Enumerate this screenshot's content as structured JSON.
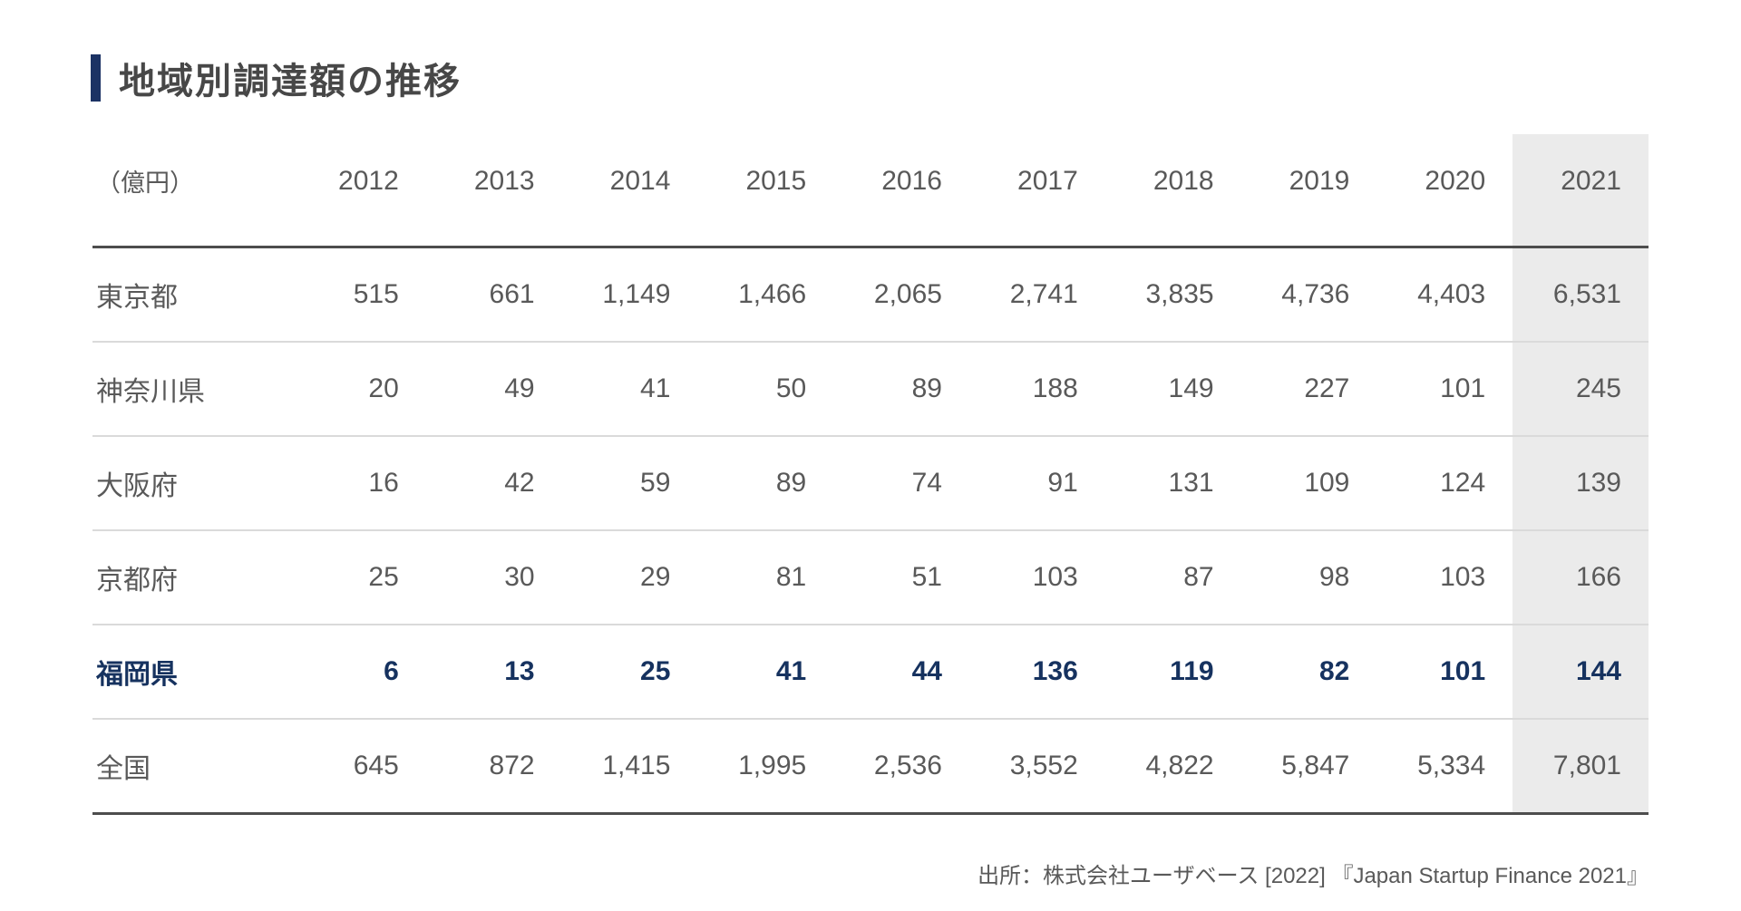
{
  "page": {
    "title": "地域別調達額の推移"
  },
  "table": {
    "unit_label": "（億円）",
    "year_headers": [
      "2012",
      "2013",
      "2014",
      "2015",
      "2016",
      "2017",
      "2018",
      "2019",
      "2020",
      "2021"
    ],
    "highlighted_year": "2021",
    "rows": [
      {
        "label": "東京都",
        "emphasis": false,
        "values": [
          "515",
          "661",
          "1,149",
          "1,466",
          "2,065",
          "2,741",
          "3,835",
          "4,736",
          "4,403",
          "6,531"
        ]
      },
      {
        "label": "神奈川県",
        "emphasis": false,
        "values": [
          "20",
          "49",
          "41",
          "50",
          "89",
          "188",
          "149",
          "227",
          "101",
          "245"
        ]
      },
      {
        "label": "大阪府",
        "emphasis": false,
        "values": [
          "16",
          "42",
          "59",
          "89",
          "74",
          "91",
          "131",
          "109",
          "124",
          "139"
        ]
      },
      {
        "label": "京都府",
        "emphasis": false,
        "values": [
          "25",
          "30",
          "29",
          "81",
          "51",
          "103",
          "87",
          "98",
          "103",
          "166"
        ]
      },
      {
        "label": "福岡県",
        "emphasis": true,
        "values": [
          "6",
          "13",
          "25",
          "41",
          "44",
          "136",
          "119",
          "82",
          "101",
          "144"
        ]
      },
      {
        "label": "全国",
        "emphasis": false,
        "values": [
          "645",
          "872",
          "1,415",
          "1,995",
          "2,536",
          "3,552",
          "4,822",
          "5,847",
          "5,334",
          "7,801"
        ]
      }
    ]
  },
  "footer": {
    "source": "出所：株式会社ユーザベース [2022] 『Japan Startup Finance 2021』"
  },
  "colors": {
    "accent_navy": "#1b3264",
    "emphasis_text": "#16325f",
    "body_text_gray": "#595959",
    "highlight_column_bg": "#ebebeb",
    "thick_border": "#4d4d4d",
    "row_separator": "#dadada"
  },
  "chart_data": {
    "type": "table",
    "title": "地域別調達額の推移",
    "unit": "億円",
    "columns": [
      2012,
      2013,
      2014,
      2015,
      2016,
      2017,
      2018,
      2019,
      2020,
      2021
    ],
    "rows": [
      {
        "region": "東京都",
        "values": [
          515,
          661,
          1149,
          1466,
          2065,
          2741,
          3835,
          4736,
          4403,
          6531
        ]
      },
      {
        "region": "神奈川県",
        "values": [
          20,
          49,
          41,
          50,
          89,
          188,
          149,
          227,
          101,
          245
        ]
      },
      {
        "region": "大阪府",
        "values": [
          16,
          42,
          59,
          89,
          74,
          91,
          131,
          109,
          124,
          139
        ]
      },
      {
        "region": "京都府",
        "values": [
          25,
          30,
          29,
          81,
          51,
          103,
          87,
          98,
          103,
          166
        ]
      },
      {
        "region": "福岡県",
        "values": [
          6,
          13,
          25,
          41,
          44,
          136,
          119,
          82,
          101,
          144
        ]
      },
      {
        "region": "全国",
        "values": [
          645,
          872,
          1415,
          1995,
          2536,
          3552,
          4822,
          5847,
          5334,
          7801
        ]
      }
    ],
    "highlighted_column": 2021,
    "highlighted_row": "福岡県",
    "source": "出所：株式会社ユーザベース [2022] 『Japan Startup Finance 2021』"
  }
}
